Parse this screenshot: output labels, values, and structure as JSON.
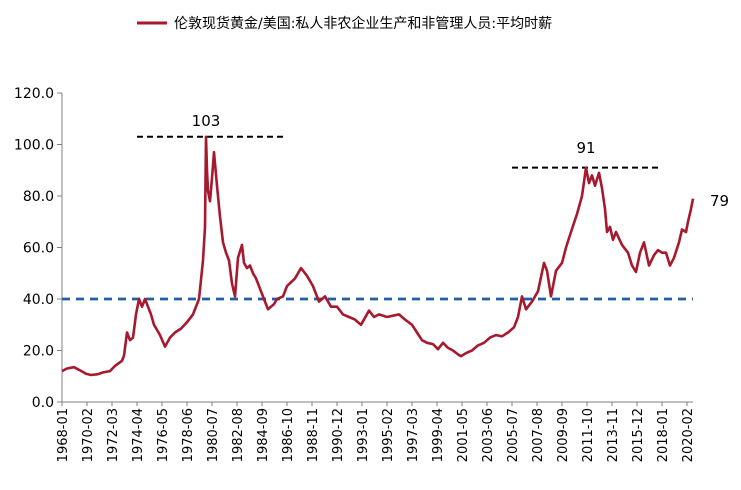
{
  "chart_data": {
    "type": "line",
    "legend": {
      "position": "top",
      "entries": [
        "伦敦现货黄金/美国:私人非农企业生产和非管理人员:平均时薪"
      ]
    },
    "series": [
      {
        "name": "伦敦现货黄金/美国:私人非农企业生产和非管理人员:平均时薪",
        "color": "#a6192e",
        "points": [
          [
            "1968-01",
            12.0
          ],
          [
            "1968-06",
            13.0
          ],
          [
            "1969-01",
            13.5
          ],
          [
            "1969-06",
            12.5
          ],
          [
            "1970-01",
            11.0
          ],
          [
            "1970-06",
            10.5
          ],
          [
            "1971-01",
            10.8
          ],
          [
            "1971-06",
            11.5
          ],
          [
            "1972-01",
            12.0
          ],
          [
            "1972-06",
            14.0
          ],
          [
            "1973-01",
            16.0
          ],
          [
            "1973-03",
            18.0
          ],
          [
            "1973-06",
            27.0
          ],
          [
            "1973-09",
            24.0
          ],
          [
            "1973-12",
            25.0
          ],
          [
            "1974-03",
            34.0
          ],
          [
            "1974-06",
            40.0
          ],
          [
            "1974-09",
            37.0
          ],
          [
            "1974-12",
            40.0
          ],
          [
            "1975-03",
            37.0
          ],
          [
            "1975-06",
            34.0
          ],
          [
            "1975-09",
            30.0
          ],
          [
            "1975-12",
            28.0
          ],
          [
            "1976-03",
            26.0
          ],
          [
            "1976-08",
            21.5
          ],
          [
            "1977-01",
            25.0
          ],
          [
            "1977-06",
            27.0
          ],
          [
            "1977-12",
            28.5
          ],
          [
            "1978-06",
            31.0
          ],
          [
            "1978-12",
            34.0
          ],
          [
            "1979-06",
            40.0
          ],
          [
            "1979-10",
            55.0
          ],
          [
            "1979-12",
            68.0
          ],
          [
            "1980-01",
            103.0
          ],
          [
            "1980-02",
            90.0
          ],
          [
            "1980-03",
            82.0
          ],
          [
            "1980-05",
            78.0
          ],
          [
            "1980-07",
            87.0
          ],
          [
            "1980-09",
            97.0
          ],
          [
            "1980-12",
            84.0
          ],
          [
            "1981-03",
            72.0
          ],
          [
            "1981-06",
            62.0
          ],
          [
            "1981-09",
            58.0
          ],
          [
            "1981-12",
            55.0
          ],
          [
            "1982-03",
            46.0
          ],
          [
            "1982-06",
            41.0
          ],
          [
            "1982-09",
            56.0
          ],
          [
            "1983-01",
            61.0
          ],
          [
            "1983-03",
            54.0
          ],
          [
            "1983-06",
            52.0
          ],
          [
            "1983-09",
            53.0
          ],
          [
            "1983-12",
            50.0
          ],
          [
            "1984-03",
            48.0
          ],
          [
            "1984-06",
            45.0
          ],
          [
            "1984-09",
            42.0
          ],
          [
            "1984-12",
            39.0
          ],
          [
            "1985-03",
            36.0
          ],
          [
            "1985-06",
            37.0
          ],
          [
            "1985-09",
            38.0
          ],
          [
            "1985-12",
            40.0
          ],
          [
            "1986-06",
            41.0
          ],
          [
            "1986-10",
            45.0
          ],
          [
            "1987-06",
            48.0
          ],
          [
            "1987-12",
            52.0
          ],
          [
            "1988-06",
            49.0
          ],
          [
            "1988-12",
            45.0
          ],
          [
            "1989-06",
            39.0
          ],
          [
            "1989-12",
            41.0
          ],
          [
            "1990-06",
            37.0
          ],
          [
            "1990-12",
            37.0
          ],
          [
            "1991-06",
            34.0
          ],
          [
            "1991-12",
            33.0
          ],
          [
            "1992-06",
            32.0
          ],
          [
            "1992-12",
            30.0
          ],
          [
            "1993-08",
            35.5
          ],
          [
            "1994-01",
            33.0
          ],
          [
            "1994-06",
            34.0
          ],
          [
            "1995-02",
            33.0
          ],
          [
            "1995-08",
            33.5
          ],
          [
            "1996-02",
            34.0
          ],
          [
            "1996-08",
            32.0
          ],
          [
            "1997-03",
            30.0
          ],
          [
            "1997-08",
            27.0
          ],
          [
            "1998-01",
            24.0
          ],
          [
            "1998-06",
            23.0
          ],
          [
            "1998-12",
            22.5
          ],
          [
            "1999-05",
            20.5
          ],
          [
            "1999-10",
            23.0
          ],
          [
            "2000-03",
            21.0
          ],
          [
            "2000-08",
            20.0
          ],
          [
            "2001-01",
            18.5
          ],
          [
            "2001-04",
            17.8
          ],
          [
            "2001-09",
            19.0
          ],
          [
            "2002-03",
            20.0
          ],
          [
            "2002-09",
            22.0
          ],
          [
            "2003-03",
            23.0
          ],
          [
            "2003-09",
            25.0
          ],
          [
            "2004-03",
            26.0
          ],
          [
            "2004-09",
            25.5
          ],
          [
            "2005-03",
            27.0
          ],
          [
            "2005-09",
            29.0
          ],
          [
            "2006-01",
            33.0
          ],
          [
            "2006-05",
            41.0
          ],
          [
            "2006-09",
            36.0
          ],
          [
            "2007-03",
            39.0
          ],
          [
            "2007-09",
            43.0
          ],
          [
            "2008-03",
            54.0
          ],
          [
            "2008-06",
            51.0
          ],
          [
            "2008-10",
            41.0
          ],
          [
            "2009-03",
            51.0
          ],
          [
            "2009-09",
            54.0
          ],
          [
            "2010-01",
            60.0
          ],
          [
            "2010-06",
            66.0
          ],
          [
            "2010-12",
            73.0
          ],
          [
            "2011-05",
            80.0
          ],
          [
            "2011-09",
            91.0
          ],
          [
            "2011-12",
            85.0
          ],
          [
            "2012-03",
            88.0
          ],
          [
            "2012-06",
            84.0
          ],
          [
            "2012-10",
            89.0
          ],
          [
            "2013-01",
            83.0
          ],
          [
            "2013-04",
            75.0
          ],
          [
            "2013-06",
            66.0
          ],
          [
            "2013-09",
            68.0
          ],
          [
            "2013-12",
            63.0
          ],
          [
            "2014-03",
            66.0
          ],
          [
            "2014-09",
            61.0
          ],
          [
            "2015-03",
            58.0
          ],
          [
            "2015-07",
            53.0
          ],
          [
            "2015-11",
            50.5
          ],
          [
            "2016-03",
            58.0
          ],
          [
            "2016-07",
            62.0
          ],
          [
            "2016-12",
            53.0
          ],
          [
            "2017-05",
            57.0
          ],
          [
            "2017-09",
            59.0
          ],
          [
            "2018-01",
            58.0
          ],
          [
            "2018-05",
            58.0
          ],
          [
            "2018-09",
            53.0
          ],
          [
            "2019-01",
            56.0
          ],
          [
            "2019-06",
            62.0
          ],
          [
            "2019-09",
            67.0
          ],
          [
            "2020-01",
            66.0
          ],
          [
            "2020-03",
            70.0
          ],
          [
            "2020-06",
            75.0
          ],
          [
            "2020-08",
            79.0
          ]
        ]
      }
    ],
    "x_range": [
      "1968-01",
      "2020-08"
    ],
    "x_ticks": [
      "1968-01",
      "1970-02",
      "1972-03",
      "1974-04",
      "1976-05",
      "1978-06",
      "1980-07",
      "1982-08",
      "1984-09",
      "1986-10",
      "1988-11",
      "1990-12",
      "1993-01",
      "1995-02",
      "1997-03",
      "1999-04",
      "2001-05",
      "2003-06",
      "2005-07",
      "2007-08",
      "2009-09",
      "2011-10",
      "2013-11",
      "2015-12",
      "2018-01",
      "2020-02"
    ],
    "y_ticks": [
      "0.0",
      "20.0",
      "40.0",
      "60.0",
      "80.0",
      "100.0",
      "120.0"
    ],
    "ylim": [
      0,
      120
    ],
    "grid": false,
    "reference_lines": [
      {
        "y": 40,
        "color": "#1f5fa6",
        "style": "dashed",
        "span": "full"
      },
      {
        "y": 103,
        "color": "#000000",
        "style": "dashed",
        "from": "1974-04",
        "to": "1986-10"
      },
      {
        "y": 91,
        "color": "#000000",
        "style": "dashed",
        "from": "2005-07",
        "to": "2018-01"
      }
    ],
    "annotations": [
      {
        "text": "103",
        "x": "1980-01"
      },
      {
        "text": "91",
        "x": "2011-09"
      },
      {
        "text": "79",
        "x": "2020-08"
      }
    ]
  }
}
